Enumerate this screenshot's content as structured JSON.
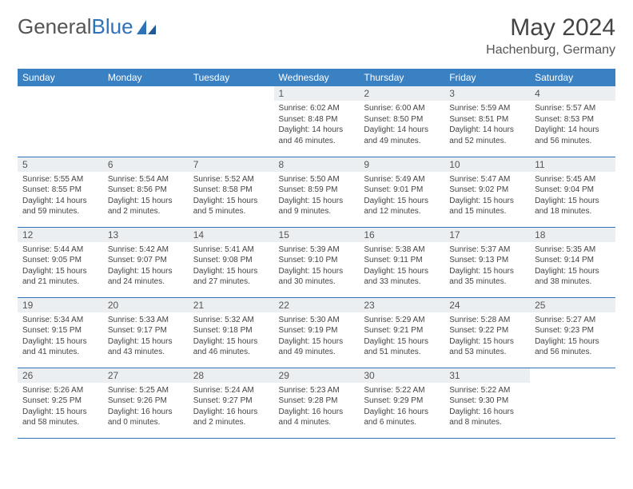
{
  "brand": {
    "part1": "General",
    "part2": "Blue"
  },
  "title": "May 2024",
  "location": "Hachenburg, Germany",
  "colors": {
    "header_bg": "#3a81c4",
    "header_text": "#ffffff",
    "daynum_bg": "#eceff1",
    "border": "#2e72b8",
    "body_text": "#444444",
    "brand_gray": "#555555",
    "brand_blue": "#2e72b8",
    "page_bg": "#ffffff"
  },
  "typography": {
    "month_title_fontsize": 30,
    "location_fontsize": 16,
    "weekday_fontsize": 12,
    "daynum_fontsize": 12,
    "cell_fontsize": 10,
    "logo_fontsize": 26
  },
  "weekdays": [
    "Sunday",
    "Monday",
    "Tuesday",
    "Wednesday",
    "Thursday",
    "Friday",
    "Saturday"
  ],
  "weeks": [
    [
      null,
      null,
      null,
      {
        "n": "1",
        "sr": "Sunrise: 6:02 AM",
        "ss": "Sunset: 8:48 PM",
        "dl": "Daylight: 14 hours and 46 minutes."
      },
      {
        "n": "2",
        "sr": "Sunrise: 6:00 AM",
        "ss": "Sunset: 8:50 PM",
        "dl": "Daylight: 14 hours and 49 minutes."
      },
      {
        "n": "3",
        "sr": "Sunrise: 5:59 AM",
        "ss": "Sunset: 8:51 PM",
        "dl": "Daylight: 14 hours and 52 minutes."
      },
      {
        "n": "4",
        "sr": "Sunrise: 5:57 AM",
        "ss": "Sunset: 8:53 PM",
        "dl": "Daylight: 14 hours and 56 minutes."
      }
    ],
    [
      {
        "n": "5",
        "sr": "Sunrise: 5:55 AM",
        "ss": "Sunset: 8:55 PM",
        "dl": "Daylight: 14 hours and 59 minutes."
      },
      {
        "n": "6",
        "sr": "Sunrise: 5:54 AM",
        "ss": "Sunset: 8:56 PM",
        "dl": "Daylight: 15 hours and 2 minutes."
      },
      {
        "n": "7",
        "sr": "Sunrise: 5:52 AM",
        "ss": "Sunset: 8:58 PM",
        "dl": "Daylight: 15 hours and 5 minutes."
      },
      {
        "n": "8",
        "sr": "Sunrise: 5:50 AM",
        "ss": "Sunset: 8:59 PM",
        "dl": "Daylight: 15 hours and 9 minutes."
      },
      {
        "n": "9",
        "sr": "Sunrise: 5:49 AM",
        "ss": "Sunset: 9:01 PM",
        "dl": "Daylight: 15 hours and 12 minutes."
      },
      {
        "n": "10",
        "sr": "Sunrise: 5:47 AM",
        "ss": "Sunset: 9:02 PM",
        "dl": "Daylight: 15 hours and 15 minutes."
      },
      {
        "n": "11",
        "sr": "Sunrise: 5:45 AM",
        "ss": "Sunset: 9:04 PM",
        "dl": "Daylight: 15 hours and 18 minutes."
      }
    ],
    [
      {
        "n": "12",
        "sr": "Sunrise: 5:44 AM",
        "ss": "Sunset: 9:05 PM",
        "dl": "Daylight: 15 hours and 21 minutes."
      },
      {
        "n": "13",
        "sr": "Sunrise: 5:42 AM",
        "ss": "Sunset: 9:07 PM",
        "dl": "Daylight: 15 hours and 24 minutes."
      },
      {
        "n": "14",
        "sr": "Sunrise: 5:41 AM",
        "ss": "Sunset: 9:08 PM",
        "dl": "Daylight: 15 hours and 27 minutes."
      },
      {
        "n": "15",
        "sr": "Sunrise: 5:39 AM",
        "ss": "Sunset: 9:10 PM",
        "dl": "Daylight: 15 hours and 30 minutes."
      },
      {
        "n": "16",
        "sr": "Sunrise: 5:38 AM",
        "ss": "Sunset: 9:11 PM",
        "dl": "Daylight: 15 hours and 33 minutes."
      },
      {
        "n": "17",
        "sr": "Sunrise: 5:37 AM",
        "ss": "Sunset: 9:13 PM",
        "dl": "Daylight: 15 hours and 35 minutes."
      },
      {
        "n": "18",
        "sr": "Sunrise: 5:35 AM",
        "ss": "Sunset: 9:14 PM",
        "dl": "Daylight: 15 hours and 38 minutes."
      }
    ],
    [
      {
        "n": "19",
        "sr": "Sunrise: 5:34 AM",
        "ss": "Sunset: 9:15 PM",
        "dl": "Daylight: 15 hours and 41 minutes."
      },
      {
        "n": "20",
        "sr": "Sunrise: 5:33 AM",
        "ss": "Sunset: 9:17 PM",
        "dl": "Daylight: 15 hours and 43 minutes."
      },
      {
        "n": "21",
        "sr": "Sunrise: 5:32 AM",
        "ss": "Sunset: 9:18 PM",
        "dl": "Daylight: 15 hours and 46 minutes."
      },
      {
        "n": "22",
        "sr": "Sunrise: 5:30 AM",
        "ss": "Sunset: 9:19 PM",
        "dl": "Daylight: 15 hours and 49 minutes."
      },
      {
        "n": "23",
        "sr": "Sunrise: 5:29 AM",
        "ss": "Sunset: 9:21 PM",
        "dl": "Daylight: 15 hours and 51 minutes."
      },
      {
        "n": "24",
        "sr": "Sunrise: 5:28 AM",
        "ss": "Sunset: 9:22 PM",
        "dl": "Daylight: 15 hours and 53 minutes."
      },
      {
        "n": "25",
        "sr": "Sunrise: 5:27 AM",
        "ss": "Sunset: 9:23 PM",
        "dl": "Daylight: 15 hours and 56 minutes."
      }
    ],
    [
      {
        "n": "26",
        "sr": "Sunrise: 5:26 AM",
        "ss": "Sunset: 9:25 PM",
        "dl": "Daylight: 15 hours and 58 minutes."
      },
      {
        "n": "27",
        "sr": "Sunrise: 5:25 AM",
        "ss": "Sunset: 9:26 PM",
        "dl": "Daylight: 16 hours and 0 minutes."
      },
      {
        "n": "28",
        "sr": "Sunrise: 5:24 AM",
        "ss": "Sunset: 9:27 PM",
        "dl": "Daylight: 16 hours and 2 minutes."
      },
      {
        "n": "29",
        "sr": "Sunrise: 5:23 AM",
        "ss": "Sunset: 9:28 PM",
        "dl": "Daylight: 16 hours and 4 minutes."
      },
      {
        "n": "30",
        "sr": "Sunrise: 5:22 AM",
        "ss": "Sunset: 9:29 PM",
        "dl": "Daylight: 16 hours and 6 minutes."
      },
      {
        "n": "31",
        "sr": "Sunrise: 5:22 AM",
        "ss": "Sunset: 9:30 PM",
        "dl": "Daylight: 16 hours and 8 minutes."
      },
      null
    ]
  ]
}
